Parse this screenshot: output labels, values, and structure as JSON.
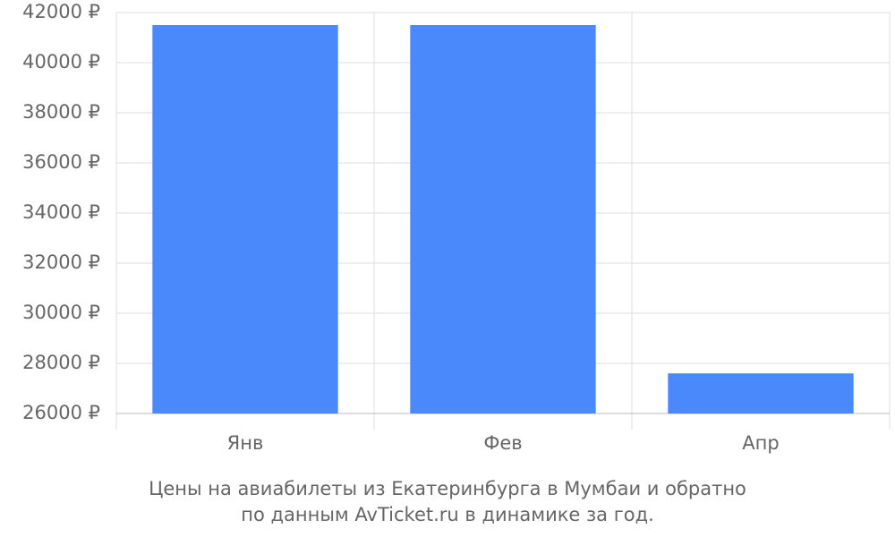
{
  "chart_data": {
    "type": "bar",
    "title": [
      "Цены на авиабилеты из Екатеринбурга в Мумбаи и обратно",
      "по данным AvTicket.ru в динамике за год."
    ],
    "categories": [
      "Янв",
      "Фев",
      "Апр"
    ],
    "values": [
      41500,
      41500,
      27600
    ],
    "color": "#4a89fc",
    "ylim": [
      26000,
      42000
    ],
    "yticks": [
      {
        "value": 26000,
        "label": "26000 ₽"
      },
      {
        "value": 28000,
        "label": "28000 ₽"
      },
      {
        "value": 30000,
        "label": "30000 ₽"
      },
      {
        "value": 32000,
        "label": "32000 ₽"
      },
      {
        "value": 34000,
        "label": "34000 ₽"
      },
      {
        "value": 36000,
        "label": "36000 ₽"
      },
      {
        "value": 38000,
        "label": "38000 ₽"
      },
      {
        "value": 40000,
        "label": "40000 ₽"
      },
      {
        "value": 42000,
        "label": "42000 ₽"
      }
    ],
    "grid": true
  }
}
